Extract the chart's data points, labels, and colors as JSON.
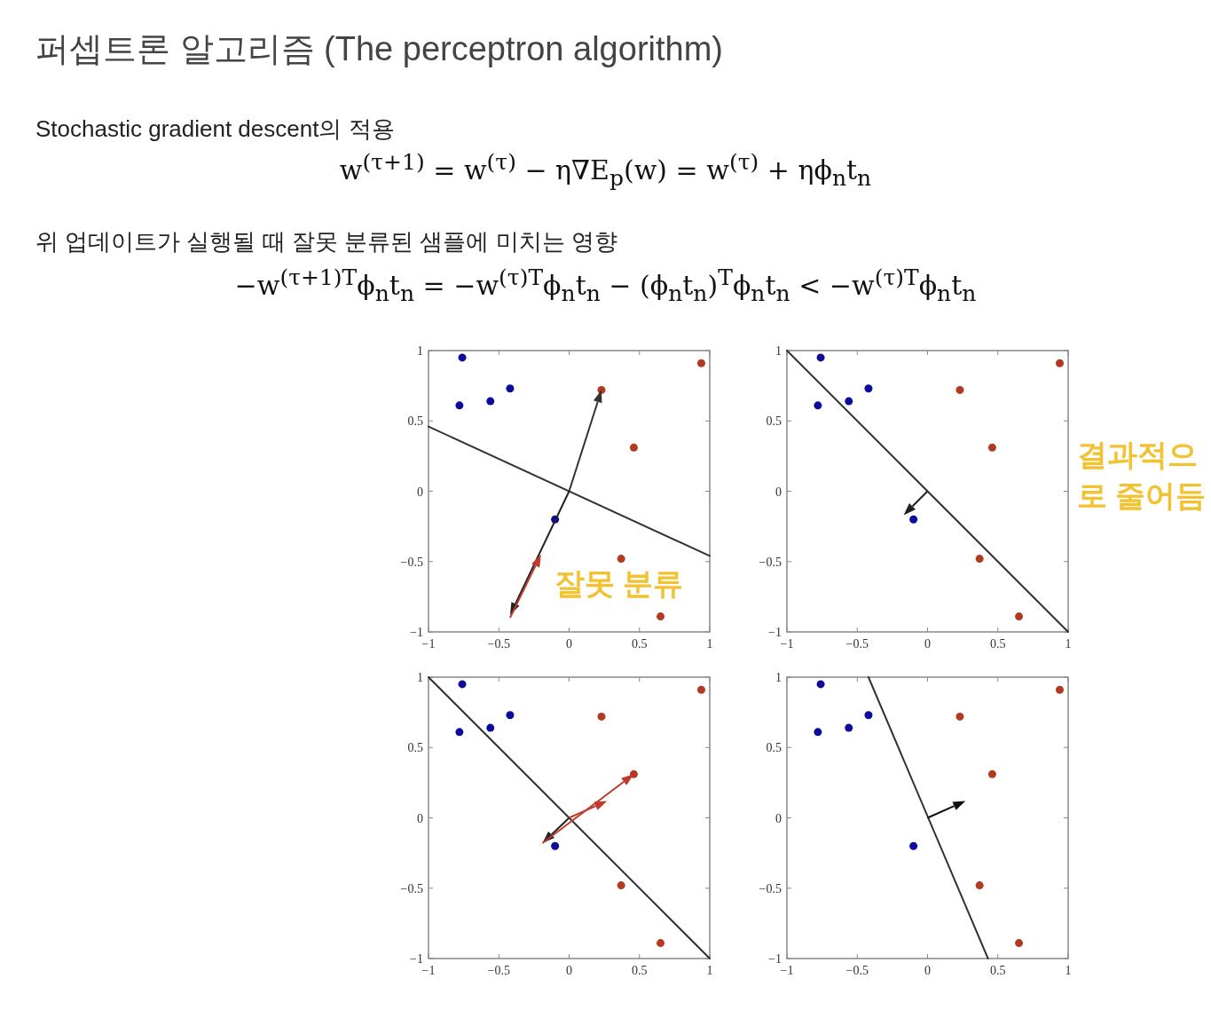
{
  "chart_data": [
    {
      "type": "other",
      "title": "퍼셉트론 알고리즘 (The perceptron algorithm)",
      "annotations": [
        "Stochastic gradient descent의 적용",
        "w$^{(τ+1)}$ = w$^{(τ)}$ − η∇E$_{p}$(w) = w$^{(τ)}$ + ηϕ$_{n}$t$_{n}$",
        "위 업데이트가 실행될 때 잘못 분류된 샘플에 미치는 영향",
        "−w$^{(τ+1)T}$ϕ$_{n}$t$_{n}$ = −w$^{(τ)T}$ϕ$_{n}$t$_{n}$ − (ϕ$_{n}$t$_{n}$)$^{T}$ϕ$_{n}$t$_{n}$ < −w$^{(τ)T}$ϕ$_{n}$t$_{n}$"
      ]
    },
    {
      "type": "scatter",
      "xlim": [
        -1,
        1
      ],
      "ylim": [
        -1,
        1
      ],
      "xticks": [
        -1,
        -0.5,
        0,
        0.5,
        1
      ],
      "yticks": [
        -1,
        -0.5,
        0,
        0.5,
        1
      ],
      "annotations": [
        "잘못 분류"
      ],
      "series": [
        {
          "color": "#0b0b9e",
          "marker": "circle",
          "x": [
            -0.76,
            -0.78,
            -0.56,
            -0.42,
            -0.1
          ],
          "values": [
            0.95,
            0.61,
            0.64,
            0.73,
            -0.2
          ]
        },
        {
          "color": "#b03a22",
          "marker": "circle",
          "x": [
            0.94,
            0.23,
            0.46,
            0.37,
            0.65
          ],
          "values": [
            0.91,
            0.72,
            0.31,
            -0.48,
            -0.89
          ]
        },
        {
          "type": "line",
          "color": "#333333",
          "x": [
            -1,
            1
          ],
          "values": [
            0.46,
            -0.46
          ]
        }
      ]
    },
    {
      "type": "scatter",
      "xlim": [
        -1,
        1
      ],
      "ylim": [
        -1,
        1
      ],
      "xticks": [
        -1,
        -0.5,
        0,
        0.5,
        1
      ],
      "yticks": [
        -1,
        -0.5,
        0,
        0.5,
        1
      ],
      "annotations": [
        "결과적으로 줄어듬"
      ],
      "series": [
        {
          "color": "#0b0b9e",
          "marker": "circle",
          "x": [
            -0.76,
            -0.78,
            -0.56,
            -0.42,
            -0.1
          ],
          "values": [
            0.95,
            0.61,
            0.64,
            0.73,
            -0.2
          ]
        },
        {
          "color": "#b03a22",
          "marker": "circle",
          "x": [
            0.94,
            0.23,
            0.46,
            0.37,
            0.65
          ],
          "values": [
            0.91,
            0.72,
            0.31,
            -0.48,
            -0.89
          ]
        },
        {
          "type": "line",
          "color": "#333333",
          "x": [
            -1,
            1
          ],
          "values": [
            1,
            -1
          ]
        }
      ]
    },
    {
      "type": "scatter",
      "xlim": [
        -1,
        1
      ],
      "ylim": [
        -1,
        1
      ],
      "xticks": [
        -1,
        -0.5,
        0,
        0.5,
        1
      ],
      "yticks": [
        -1,
        -0.5,
        0,
        0.5,
        1
      ],
      "series": [
        {
          "color": "#0b0b9e",
          "marker": "circle",
          "x": [
            -0.76,
            -0.78,
            -0.56,
            -0.42,
            -0.1
          ],
          "values": [
            0.95,
            0.61,
            0.64,
            0.73,
            -0.2
          ]
        },
        {
          "color": "#b03a22",
          "marker": "circle",
          "x": [
            0.94,
            0.23,
            0.46,
            0.37,
            0.65
          ],
          "values": [
            0.91,
            0.72,
            0.31,
            -0.48,
            -0.89
          ]
        },
        {
          "type": "line",
          "color": "#333333",
          "x": [
            -1,
            1
          ],
          "values": [
            1,
            -1
          ]
        }
      ]
    },
    {
      "type": "scatter",
      "xlim": [
        -1,
        1
      ],
      "ylim": [
        -1,
        1
      ],
      "xticks": [
        -1,
        -0.5,
        0,
        0.5,
        1
      ],
      "yticks": [
        -1,
        -0.5,
        0,
        0.5,
        1
      ],
      "series": [
        {
          "color": "#0b0b9e",
          "marker": "circle",
          "x": [
            -0.76,
            -0.78,
            -0.56,
            -0.42,
            -0.1
          ],
          "values": [
            0.95,
            0.61,
            0.64,
            0.73,
            -0.2
          ]
        },
        {
          "color": "#b03a22",
          "marker": "circle",
          "x": [
            0.94,
            0.23,
            0.46,
            0.37,
            0.65
          ],
          "values": [
            0.91,
            0.72,
            0.31,
            -0.48,
            -0.89
          ]
        },
        {
          "type": "line",
          "color": "#333333",
          "x": [
            -0.42,
            0.43
          ],
          "values": [
            1,
            -1
          ]
        }
      ]
    }
  ]
}
